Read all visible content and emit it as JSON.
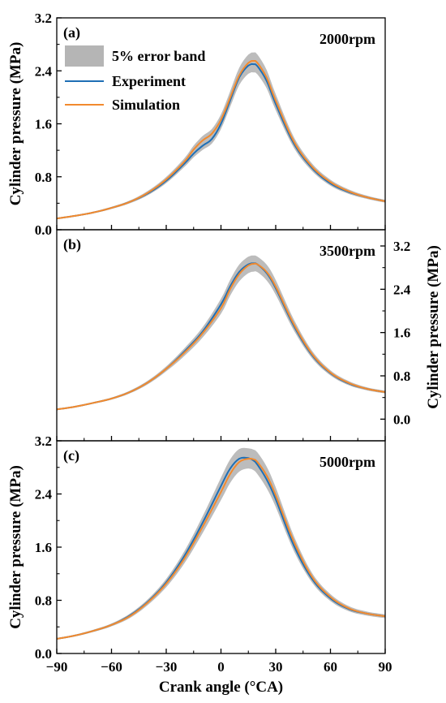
{
  "chart_data": [
    {
      "type": "line",
      "panel_label": "(a)",
      "condition_label": "2000rpm",
      "x_axis_label": "",
      "y_axis_label": "Cylinder pressure (MPa)",
      "y_axis_side": "left",
      "xlim": [
        -90,
        90
      ],
      "ylim": [
        0,
        3.2
      ],
      "y_ticks": [
        "0.0",
        "0.8",
        "1.6",
        "2.4",
        "3.2"
      ],
      "x_ticks": [],
      "legend": {
        "position": "top-left",
        "band_label": "5% error band",
        "experiment_label": "Experiment",
        "simulation_label": "Simulation"
      },
      "colors": {
        "experiment": "#1f6fb5",
        "simulation": "#f28a2e",
        "band": "#b5b5b5"
      },
      "x": [
        -90,
        -80,
        -70,
        -60,
        -50,
        -40,
        -30,
        -20,
        -15,
        -10,
        -5,
        0,
        5,
        10,
        15,
        18,
        20,
        25,
        30,
        40,
        50,
        60,
        70,
        80,
        90
      ],
      "series": [
        {
          "name": "Experiment",
          "values": [
            0.17,
            0.21,
            0.26,
            0.33,
            0.42,
            0.55,
            0.74,
            1.0,
            1.15,
            1.27,
            1.37,
            1.6,
            1.95,
            2.3,
            2.48,
            2.5,
            2.47,
            2.25,
            1.9,
            1.3,
            0.93,
            0.7,
            0.57,
            0.49,
            0.43
          ]
        },
        {
          "name": "Simulation",
          "values": [
            0.17,
            0.21,
            0.26,
            0.33,
            0.42,
            0.56,
            0.76,
            1.03,
            1.21,
            1.35,
            1.45,
            1.66,
            1.99,
            2.33,
            2.52,
            2.55,
            2.52,
            2.3,
            1.95,
            1.33,
            0.95,
            0.72,
            0.58,
            0.49,
            0.43
          ]
        }
      ],
      "band_relative_width": 0.05
    },
    {
      "type": "line",
      "panel_label": "(b)",
      "condition_label": "3500rpm",
      "x_axis_label": "",
      "y_axis_label": "Cylinder pressure (MPa)",
      "y_axis_side": "right",
      "xlim": [
        -90,
        90
      ],
      "ylim": [
        -0.4,
        3.5
      ],
      "y_ticks": [
        "0.0",
        "0.8",
        "1.6",
        "2.4",
        "3.2"
      ],
      "x_ticks": [],
      "colors": {
        "experiment": "#1f6fb5",
        "simulation": "#f28a2e",
        "band": "#b5b5b5"
      },
      "x": [
        -90,
        -80,
        -70,
        -60,
        -50,
        -40,
        -30,
        -20,
        -10,
        0,
        5,
        10,
        15,
        18,
        20,
        25,
        30,
        40,
        50,
        60,
        70,
        80,
        90
      ],
      "series": [
        {
          "name": "Experiment",
          "values": [
            0.18,
            0.23,
            0.3,
            0.38,
            0.5,
            0.68,
            0.93,
            1.25,
            1.62,
            2.12,
            2.45,
            2.72,
            2.86,
            2.88,
            2.86,
            2.7,
            2.42,
            1.72,
            1.18,
            0.85,
            0.66,
            0.56,
            0.5
          ]
        },
        {
          "name": "Simulation",
          "values": [
            0.18,
            0.23,
            0.3,
            0.38,
            0.5,
            0.68,
            0.93,
            1.23,
            1.59,
            2.05,
            2.4,
            2.68,
            2.84,
            2.87,
            2.86,
            2.72,
            2.45,
            1.75,
            1.2,
            0.86,
            0.67,
            0.56,
            0.5
          ]
        }
      ],
      "band_relative_width": 0.05
    },
    {
      "type": "line",
      "panel_label": "(c)",
      "condition_label": "5000rpm",
      "x_axis_label": "Crank angle (°CA)",
      "y_axis_label": "Cylinder pressure (MPa)",
      "y_axis_side": "left",
      "xlim": [
        -90,
        90
      ],
      "ylim": [
        0,
        3.2
      ],
      "y_ticks": [
        "0.0",
        "0.8",
        "1.6",
        "2.4",
        "3.2"
      ],
      "x_ticks": [
        "−90",
        "−60",
        "−30",
        "0",
        "30",
        "60",
        "90"
      ],
      "colors": {
        "experiment": "#1f6fb5",
        "simulation": "#f28a2e",
        "band": "#b5b5b5"
      },
      "x": [
        -90,
        -80,
        -70,
        -60,
        -50,
        -40,
        -30,
        -20,
        -10,
        0,
        5,
        10,
        15,
        18,
        20,
        25,
        30,
        40,
        50,
        60,
        70,
        80,
        90
      ],
      "series": [
        {
          "name": "Experiment",
          "values": [
            0.22,
            0.27,
            0.34,
            0.43,
            0.57,
            0.78,
            1.07,
            1.47,
            1.97,
            2.52,
            2.78,
            2.93,
            2.94,
            2.9,
            2.84,
            2.62,
            2.32,
            1.62,
            1.12,
            0.83,
            0.67,
            0.6,
            0.56
          ]
        },
        {
          "name": "Simulation",
          "values": [
            0.22,
            0.27,
            0.34,
            0.43,
            0.56,
            0.77,
            1.05,
            1.43,
            1.91,
            2.43,
            2.7,
            2.88,
            2.93,
            2.92,
            2.88,
            2.68,
            2.38,
            1.68,
            1.15,
            0.85,
            0.68,
            0.6,
            0.56
          ]
        }
      ],
      "band_relative_width": 0.05
    }
  ]
}
